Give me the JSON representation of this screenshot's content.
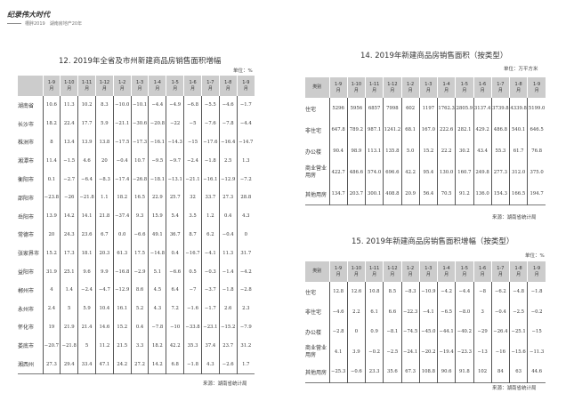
{
  "header": {
    "brand": "纪录伟大时代",
    "subtitle": "槽胖2019　湖南房地产20年"
  },
  "columns": [
    "1-9\n月",
    "1-10\n月",
    "1-11\n月",
    "1-12\n月",
    "1-2\n月",
    "1-3\n月",
    "1-4\n月",
    "1-5\n月",
    "1-6\n月",
    "1-7\n月",
    "1-8\n月",
    "1-9\n月"
  ],
  "table12": {
    "title": "12. 2019年全省及市州新建商品房销售面积增幅",
    "unit": "单位：%",
    "source": "来源：湖南省统计局",
    "corner": "",
    "rows": [
      {
        "name": "湖南省",
        "values": [
          "10.6",
          "11.3",
          "10.2",
          "8.3",
          "−10.0",
          "−10.1",
          "−4.4",
          "−4.9",
          "−6.8",
          "−5.5",
          "−4.6",
          "−1.7"
        ]
      },
      {
        "name": "长沙市",
        "values": [
          "18.2",
          "22.4",
          "17.7",
          "5.9",
          "−21.1",
          "−30.6",
          "−20.8",
          "−22",
          "−5",
          "−7.6",
          "−7.8",
          "−4.4"
        ]
      },
      {
        "name": "株洲市",
        "values": [
          "8",
          "13.4",
          "13.9",
          "13.8",
          "−17.5",
          "−17.3",
          "−16.1",
          "−14.3",
          "−15",
          "−17.6",
          "−16.4",
          "−14.7"
        ]
      },
      {
        "name": "湘潭市",
        "values": [
          "11.4",
          "−1.5",
          "4.6",
          "20",
          "−0.4",
          "10.7",
          "−9.5",
          "−9.7",
          "−2.4",
          "−1.8",
          "2.5",
          "1.3"
        ]
      },
      {
        "name": "衡阳市",
        "values": [
          "0.1",
          "−2.7",
          "−6.4",
          "−8.3",
          "−17.4",
          "−26.8",
          "−18.1",
          "−13.1",
          "−21.1",
          "−16.1",
          "−12.9",
          "−7.2"
        ]
      },
      {
        "name": "邵阳市",
        "values": [
          "−23.8",
          "−26",
          "−21.8",
          "1.1",
          "18.2",
          "16.5",
          "22.9",
          "25.7",
          "32",
          "33.7",
          "27.3",
          "28.8"
        ]
      },
      {
        "name": "岳阳市",
        "values": [
          "13.9",
          "14.2",
          "14.1",
          "21.8",
          "−37.4",
          "9.3",
          "15.9",
          "5.4",
          "3.5",
          "1.2",
          "0.4",
          "4.3"
        ]
      },
      {
        "name": "常德市",
        "values": [
          "20",
          "24.3",
          "23.6",
          "6.7",
          "0.0",
          "−6.6",
          "49.1",
          "36.7",
          "8.7",
          "6.2",
          "−0.4",
          "0"
        ]
      },
      {
        "name": "张家界市",
        "values": [
          "15.2",
          "17.3",
          "18.1",
          "20.3",
          "61.3",
          "17.5",
          "−14.8",
          "0.4",
          "−16.7",
          "−4.1",
          "11.3",
          "31.7"
        ]
      },
      {
        "name": "益阳市",
        "values": [
          "31.9",
          "25.1",
          "9.6",
          "9.9",
          "−16.8",
          "−2.9",
          "5.1",
          "−6.6",
          "0.5",
          "−0.3",
          "−1.4",
          "−4.2"
        ]
      },
      {
        "name": "郴州市",
        "values": [
          "4",
          "1.4",
          "−2.4",
          "−4.7",
          "−12.9",
          "8.6",
          "4.5",
          "6.4",
          "−7",
          "−3.7",
          "−1.8",
          "−2.8"
        ]
      },
      {
        "name": "永州市",
        "values": [
          "2.4",
          "5",
          "5.9",
          "10.4",
          "16.1",
          "5.2",
          "4.3",
          "7.2",
          "−1.6",
          "−1.7",
          "2.6",
          "2.3"
        ]
      },
      {
        "name": "怀化市",
        "values": [
          "19",
          "21.9",
          "21.4",
          "14.6",
          "15.2",
          "0.4",
          "−7.8",
          "−10",
          "−33.8",
          "−23.1",
          "−15.2",
          "−7.9"
        ]
      },
      {
        "name": "娄底市",
        "values": [
          "−20.7",
          "−21.8",
          "5",
          "11.2",
          "21.5",
          "3.3",
          "18.2",
          "42.2",
          "35.3",
          "37.4",
          "23.7",
          "31.2"
        ]
      },
      {
        "name": "湘西州",
        "values": [
          "27.3",
          "29.4",
          "33.4",
          "47.1",
          "24.2",
          "27.2",
          "14.2",
          "6.8",
          "−1.8",
          "4.3",
          "−2.6",
          "1.7"
        ]
      }
    ]
  },
  "table14": {
    "title": "14. 2019年新建商品房销售面积（按类型）",
    "unit": "单位：万平方米",
    "source": "来源：湖南省统计局",
    "corner": "类别",
    "rows": [
      {
        "name": "住宅",
        "values": [
          "5296",
          "5956",
          "6857",
          "7998",
          "602",
          "1197",
          "1762.3",
          "2805.9",
          "3137.4",
          "3739.8",
          "4339.8",
          "5199.0"
        ]
      },
      {
        "name": "非住宅",
        "values": [
          "647.8",
          "789.2",
          "987.1",
          "1241.2",
          "68.1",
          "167.0",
          "222.6",
          "282.1",
          "429.2",
          "486.8",
          "540.1",
          "646.5"
        ]
      },
      {
        "name": "办公楼",
        "values": [
          "90.4",
          "98.9",
          "113.1",
          "135.8",
          "5.0",
          "15.2",
          "22.2",
          "30.2",
          "43.4",
          "55.3",
          "61.7",
          "76.8"
        ]
      },
      {
        "name": "商业营业用房",
        "values": [
          "422.7",
          "486.6",
          "574.0",
          "696.6",
          "42.2",
          "95.4",
          "130.0",
          "160.7",
          "249.8",
          "277.3",
          "312.0",
          "375.0"
        ]
      },
      {
        "name": "其他用房",
        "values": [
          "134.7",
          "203.7",
          "300.1",
          "408.8",
          "20.9",
          "56.4",
          "70.5",
          "91.2",
          "136.0",
          "154.3",
          "166.5",
          "194.7"
        ]
      }
    ]
  },
  "table15": {
    "title": "15. 2019年新建商品房销售面积增幅（按类型）",
    "unit": "单位：%",
    "source": "来源：湖南省统计局",
    "corner": "类别",
    "rows": [
      {
        "name": "住宅",
        "values": [
          "12.8",
          "12.6",
          "10.8",
          "8.5",
          "−8.3",
          "−10.9",
          "−4.2",
          "−4.4",
          "−8",
          "−6.2",
          "−4.8",
          "−1.8"
        ]
      },
      {
        "name": "非住宅",
        "values": [
          "−4.6",
          "2.2",
          "6.1",
          "6.6",
          "−22.3",
          "−4.1",
          "−6.5",
          "−8.0",
          "3",
          "−0.4",
          "−2.5",
          "−0.2"
        ]
      },
      {
        "name": "办公楼",
        "values": [
          "−2.8",
          "0",
          "0.9",
          "−8.1",
          "−74.5",
          "−45.0",
          "−44.1",
          "−40.2",
          "−29",
          "−26.4",
          "−25.1",
          "−15"
        ]
      },
      {
        "name": "商业营业用房",
        "values": [
          "4.1",
          "3.9",
          "−0.2",
          "−2.5",
          "−24.1",
          "−20.2",
          "−19.4",
          "−23.3",
          "−13",
          "−16",
          "−15.6",
          "−11.3"
        ]
      },
      {
        "name": "其他用房",
        "values": [
          "−25.3",
          "−0.6",
          "23.3",
          "35.6",
          "67.3",
          "108.8",
          "90.6",
          "91.8",
          "102",
          "84",
          "63",
          "44.6"
        ]
      }
    ]
  }
}
